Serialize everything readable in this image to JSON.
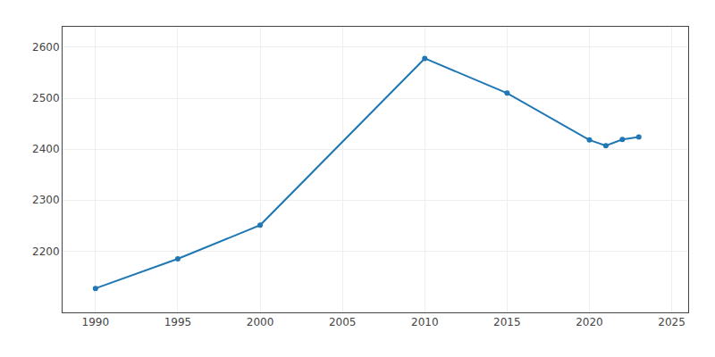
{
  "chart_data": {
    "type": "line",
    "x": [
      1990,
      1995,
      2000,
      2010,
      2015,
      2020,
      2021,
      2022,
      2023
    ],
    "values": [
      2127,
      2185,
      2251,
      2578,
      2510,
      2418,
      2407,
      2419,
      2424
    ],
    "xlim": [
      1988,
      2026
    ],
    "ylim": [
      2080,
      2640
    ],
    "xticks": [
      1990,
      1995,
      2000,
      2005,
      2010,
      2015,
      2020,
      2025
    ],
    "yticks": [
      2200,
      2300,
      2400,
      2500,
      2600
    ],
    "grid": true,
    "marker": "circle"
  }
}
